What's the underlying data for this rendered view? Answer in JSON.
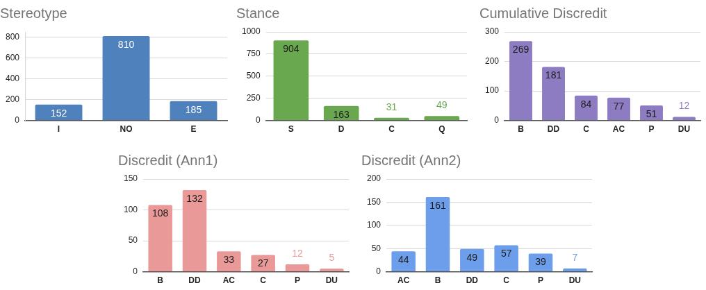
{
  "chart_data": [
    {
      "type": "bar",
      "title": "Stereotype",
      "categories": [
        "I",
        "NO",
        "E"
      ],
      "values": [
        152,
        810,
        185
      ],
      "color": "#4f81bd",
      "ylim": [
        0,
        850
      ],
      "yticks": [
        0,
        200,
        400,
        600,
        800
      ],
      "grid": "y",
      "data_labels": true
    },
    {
      "type": "bar",
      "title": "Stance",
      "categories": [
        "S",
        "D",
        "C",
        "Q"
      ],
      "values": [
        904,
        163,
        31,
        49
      ],
      "color": "#6aa84f",
      "ylim": [
        0,
        1000
      ],
      "yticks": [
        0,
        250,
        500,
        750,
        1000
      ],
      "grid": "y",
      "data_labels": true
    },
    {
      "type": "bar",
      "title": "Cumulative Discredit",
      "categories": [
        "B",
        "DD",
        "C",
        "AC",
        "P",
        "DU"
      ],
      "values": [
        269,
        181,
        84,
        77,
        51,
        12
      ],
      "color": "#8e7cc3",
      "ylim": [
        0,
        300
      ],
      "yticks": [
        0,
        100,
        200,
        300
      ],
      "grid": "y",
      "data_labels": true
    },
    {
      "type": "bar",
      "title": "Discredit (Ann1)",
      "categories": [
        "B",
        "DD",
        "AC",
        "C",
        "P",
        "DU"
      ],
      "values": [
        108,
        132,
        33,
        27,
        12,
        5
      ],
      "color": "#ea9999",
      "ylim": [
        0,
        150
      ],
      "yticks": [
        0,
        50,
        100,
        150
      ],
      "grid": "y",
      "data_labels": true
    },
    {
      "type": "bar",
      "title": "Discredit (Ann2)",
      "categories": [
        "AC",
        "B",
        "DD",
        "C",
        "P",
        "DU"
      ],
      "values": [
        44,
        161,
        49,
        57,
        39,
        7
      ],
      "color": "#6d9eeb",
      "ylim": [
        0,
        200
      ],
      "yticks": [
        0,
        50,
        100,
        150,
        200
      ],
      "grid": "y",
      "data_labels": true
    }
  ]
}
